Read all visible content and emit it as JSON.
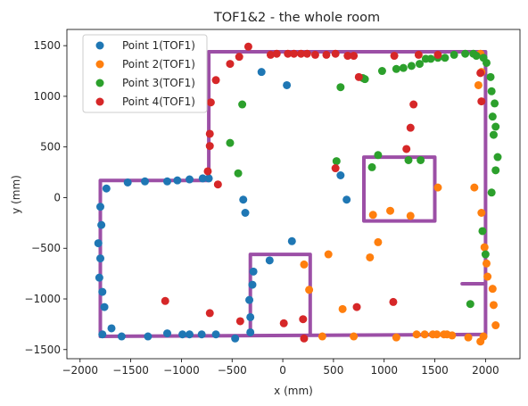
{
  "chart_data": {
    "type": "scatter",
    "title": "TOF1&2 - the whole room",
    "xlabel": "x (mm)",
    "ylabel": "y (mm)",
    "xlim": [
      -2130,
      2340
    ],
    "ylim": [
      -1590,
      1660
    ],
    "xticks": [
      -2000,
      -1500,
      -1000,
      -500,
      0,
      500,
      1000,
      1500,
      2000
    ],
    "yticks": [
      -1500,
      -1000,
      -500,
      0,
      500,
      1000,
      1500
    ],
    "xtick_labels": [
      "−2000",
      "−1500",
      "−1000",
      "−500",
      "0",
      "500",
      "1000",
      "1500",
      "2000"
    ],
    "ytick_labels": [
      "−1500",
      "−1000",
      "−500",
      "0",
      "500",
      "1000",
      "1500"
    ],
    "grid": false,
    "legend_position": "top-left",
    "outline_color": "#9c4fa6",
    "series": [
      {
        "name": "Point 1(TOF1)",
        "color": "#1f77b4",
        "points": [
          [
            -1780,
            -1350
          ],
          [
            -1690,
            -1290
          ],
          [
            -1590,
            -1370
          ],
          [
            -1330,
            -1370
          ],
          [
            -1140,
            -1340
          ],
          [
            -990,
            -1350
          ],
          [
            -920,
            -1350
          ],
          [
            -800,
            -1350
          ],
          [
            -660,
            -1350
          ],
          [
            -470,
            -1390
          ],
          [
            -1760,
            -1080
          ],
          [
            -1780,
            -930
          ],
          [
            -1810,
            -790
          ],
          [
            -1800,
            -600
          ],
          [
            -1820,
            -450
          ],
          [
            -1790,
            -270
          ],
          [
            -1800,
            -90
          ],
          [
            -1740,
            90
          ],
          [
            -1530,
            150
          ],
          [
            -1360,
            160
          ],
          [
            -1140,
            160
          ],
          [
            -1040,
            170
          ],
          [
            -920,
            180
          ],
          [
            -790,
            190
          ],
          [
            -730,
            190
          ],
          [
            -320,
            -1330
          ],
          [
            -320,
            -1180
          ],
          [
            -330,
            -1010
          ],
          [
            -300,
            -860
          ],
          [
            -290,
            -730
          ],
          [
            -130,
            -620
          ],
          [
            90,
            -430
          ],
          [
            -370,
            -150
          ],
          [
            -390,
            -20
          ],
          [
            -210,
            1240
          ],
          [
            40,
            1110
          ],
          [
            570,
            220
          ],
          [
            630,
            -20
          ]
        ]
      },
      {
        "name": "Point 2(TOF1)",
        "color": "#ff7f0e",
        "points": [
          [
            210,
            -660
          ],
          [
            260,
            -910
          ],
          [
            390,
            -1370
          ],
          [
            450,
            -560
          ],
          [
            590,
            -1100
          ],
          [
            700,
            -1370
          ],
          [
            860,
            -590
          ],
          [
            940,
            -440
          ],
          [
            890,
            -170
          ],
          [
            1060,
            -130
          ],
          [
            1120,
            -1380
          ],
          [
            1260,
            -180
          ],
          [
            1320,
            -1350
          ],
          [
            1400,
            -1350
          ],
          [
            1480,
            -1350
          ],
          [
            1520,
            -1350
          ],
          [
            1590,
            -1350
          ],
          [
            1530,
            100
          ],
          [
            1620,
            -1350
          ],
          [
            1670,
            -1360
          ],
          [
            1830,
            -1380
          ],
          [
            1950,
            -1420
          ],
          [
            1890,
            100
          ],
          [
            1960,
            -150
          ],
          [
            1990,
            -490
          ],
          [
            2010,
            -650
          ],
          [
            2020,
            -780
          ],
          [
            2070,
            -900
          ],
          [
            2080,
            -1060
          ],
          [
            2100,
            -1260
          ],
          [
            1980,
            -1370
          ],
          [
            1930,
            1110
          ],
          [
            1960,
            1240
          ],
          [
            1950,
            1420
          ]
        ]
      },
      {
        "name": "Point 3(TOF1)",
        "color": "#2ca02c",
        "points": [
          [
            -440,
            240
          ],
          [
            -400,
            920
          ],
          [
            -520,
            540
          ],
          [
            530,
            360
          ],
          [
            570,
            1090
          ],
          [
            790,
            1180
          ],
          [
            810,
            1170
          ],
          [
            880,
            300
          ],
          [
            940,
            420
          ],
          [
            980,
            1250
          ],
          [
            1120,
            1270
          ],
          [
            1190,
            1280
          ],
          [
            1240,
            370
          ],
          [
            1270,
            1300
          ],
          [
            1360,
            370
          ],
          [
            1350,
            1320
          ],
          [
            1410,
            1370
          ],
          [
            1460,
            1370
          ],
          [
            1530,
            1380
          ],
          [
            1600,
            1380
          ],
          [
            1690,
            1410
          ],
          [
            1800,
            1420
          ],
          [
            1880,
            1420
          ],
          [
            1910,
            1400
          ],
          [
            1980,
            1380
          ],
          [
            2010,
            1330
          ],
          [
            2050,
            1190
          ],
          [
            2060,
            1050
          ],
          [
            2090,
            930
          ],
          [
            2070,
            800
          ],
          [
            2100,
            700
          ],
          [
            2080,
            620
          ],
          [
            2120,
            400
          ],
          [
            2100,
            270
          ],
          [
            2060,
            50
          ],
          [
            1970,
            -330
          ],
          [
            2000,
            -560
          ],
          [
            1850,
            -1050
          ]
        ]
      },
      {
        "name": "Point 4(TOF1)",
        "color": "#d62728",
        "points": [
          [
            -1160,
            -1020
          ],
          [
            -720,
            -1140
          ],
          [
            -420,
            -1220
          ],
          [
            10,
            -1240
          ],
          [
            210,
            -1390
          ],
          [
            200,
            -1200
          ],
          [
            520,
            290
          ],
          [
            730,
            -1080
          ],
          [
            750,
            1190
          ],
          [
            1090,
            -1030
          ],
          [
            1100,
            1400
          ],
          [
            1220,
            480
          ],
          [
            1260,
            690
          ],
          [
            1290,
            920
          ],
          [
            1340,
            1410
          ],
          [
            1530,
            1410
          ],
          [
            1950,
            1230
          ],
          [
            1960,
            950
          ],
          [
            -740,
            260
          ],
          [
            -720,
            510
          ],
          [
            -720,
            630
          ],
          [
            -710,
            940
          ],
          [
            -660,
            1160
          ],
          [
            -640,
            130
          ],
          [
            -520,
            1320
          ],
          [
            -430,
            1390
          ],
          [
            -340,
            1490
          ],
          [
            -120,
            1410
          ],
          [
            -60,
            1420
          ],
          [
            50,
            1420
          ],
          [
            110,
            1420
          ],
          [
            180,
            1420
          ],
          [
            240,
            1420
          ],
          [
            320,
            1410
          ],
          [
            430,
            1410
          ],
          [
            520,
            1420
          ],
          [
            640,
            1400
          ],
          [
            700,
            1400
          ]
        ]
      }
    ],
    "outlines": [
      [
        [
          -1800,
          -1370
        ],
        [
          -1800,
          170
        ],
        [
          -730,
          170
        ],
        [
          -730,
          1440
        ],
        [
          2000,
          1440
        ],
        [
          2000,
          -1350
        ],
        [
          -1800,
          -1370
        ]
      ],
      [
        [
          -320,
          -1350
        ],
        [
          -320,
          -560
        ],
        [
          270,
          -560
        ],
        [
          270,
          -1350
        ]
      ],
      [
        [
          800,
          -230
        ],
        [
          800,
          400
        ],
        [
          1500,
          400
        ],
        [
          1500,
          -230
        ],
        [
          800,
          -230
        ]
      ],
      [
        [
          2000,
          -850
        ],
        [
          1770,
          -850
        ]
      ]
    ]
  }
}
